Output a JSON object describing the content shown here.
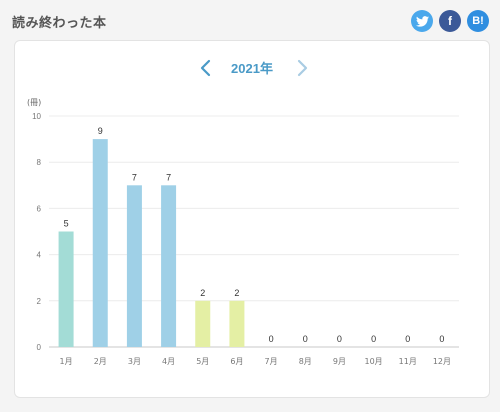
{
  "page": {
    "title": "読み終わった本"
  },
  "share": {
    "twitter_icon": "twitter-icon",
    "facebook_icon": "facebook-icon",
    "facebook_label": "f",
    "hatena_icon": "hatena-bookmark-icon",
    "hatena_label": "B!"
  },
  "nav": {
    "year_label": "2021年",
    "prev_icon": "chevron-left-icon",
    "next_icon": "chevron-right-icon"
  },
  "colors": {
    "accent": "#4a9ac7",
    "bar_teal": "#a3dcd6",
    "bar_blue": "#9fd0e7",
    "bar_lime": "#e4efa4"
  },
  "chart_data": {
    "type": "bar",
    "unit_label": "(冊)",
    "categories": [
      "1月",
      "2月",
      "3月",
      "4月",
      "5月",
      "6月",
      "7月",
      "8月",
      "9月",
      "10月",
      "11月",
      "12月"
    ],
    "values": [
      5,
      9,
      7,
      7,
      2,
      2,
      0,
      0,
      0,
      0,
      0,
      0
    ],
    "bar_colors": [
      "#a3dcd6",
      "#9fd0e7",
      "#9fd0e7",
      "#9fd0e7",
      "#e4efa4",
      "#e4efa4",
      "#9fd0e7",
      "#9fd0e7",
      "#9fd0e7",
      "#9fd0e7",
      "#9fd0e7",
      "#9fd0e7"
    ],
    "ylim": [
      0,
      10
    ],
    "yticks": [
      0,
      2,
      4,
      6,
      8,
      10
    ],
    "grid": true
  }
}
